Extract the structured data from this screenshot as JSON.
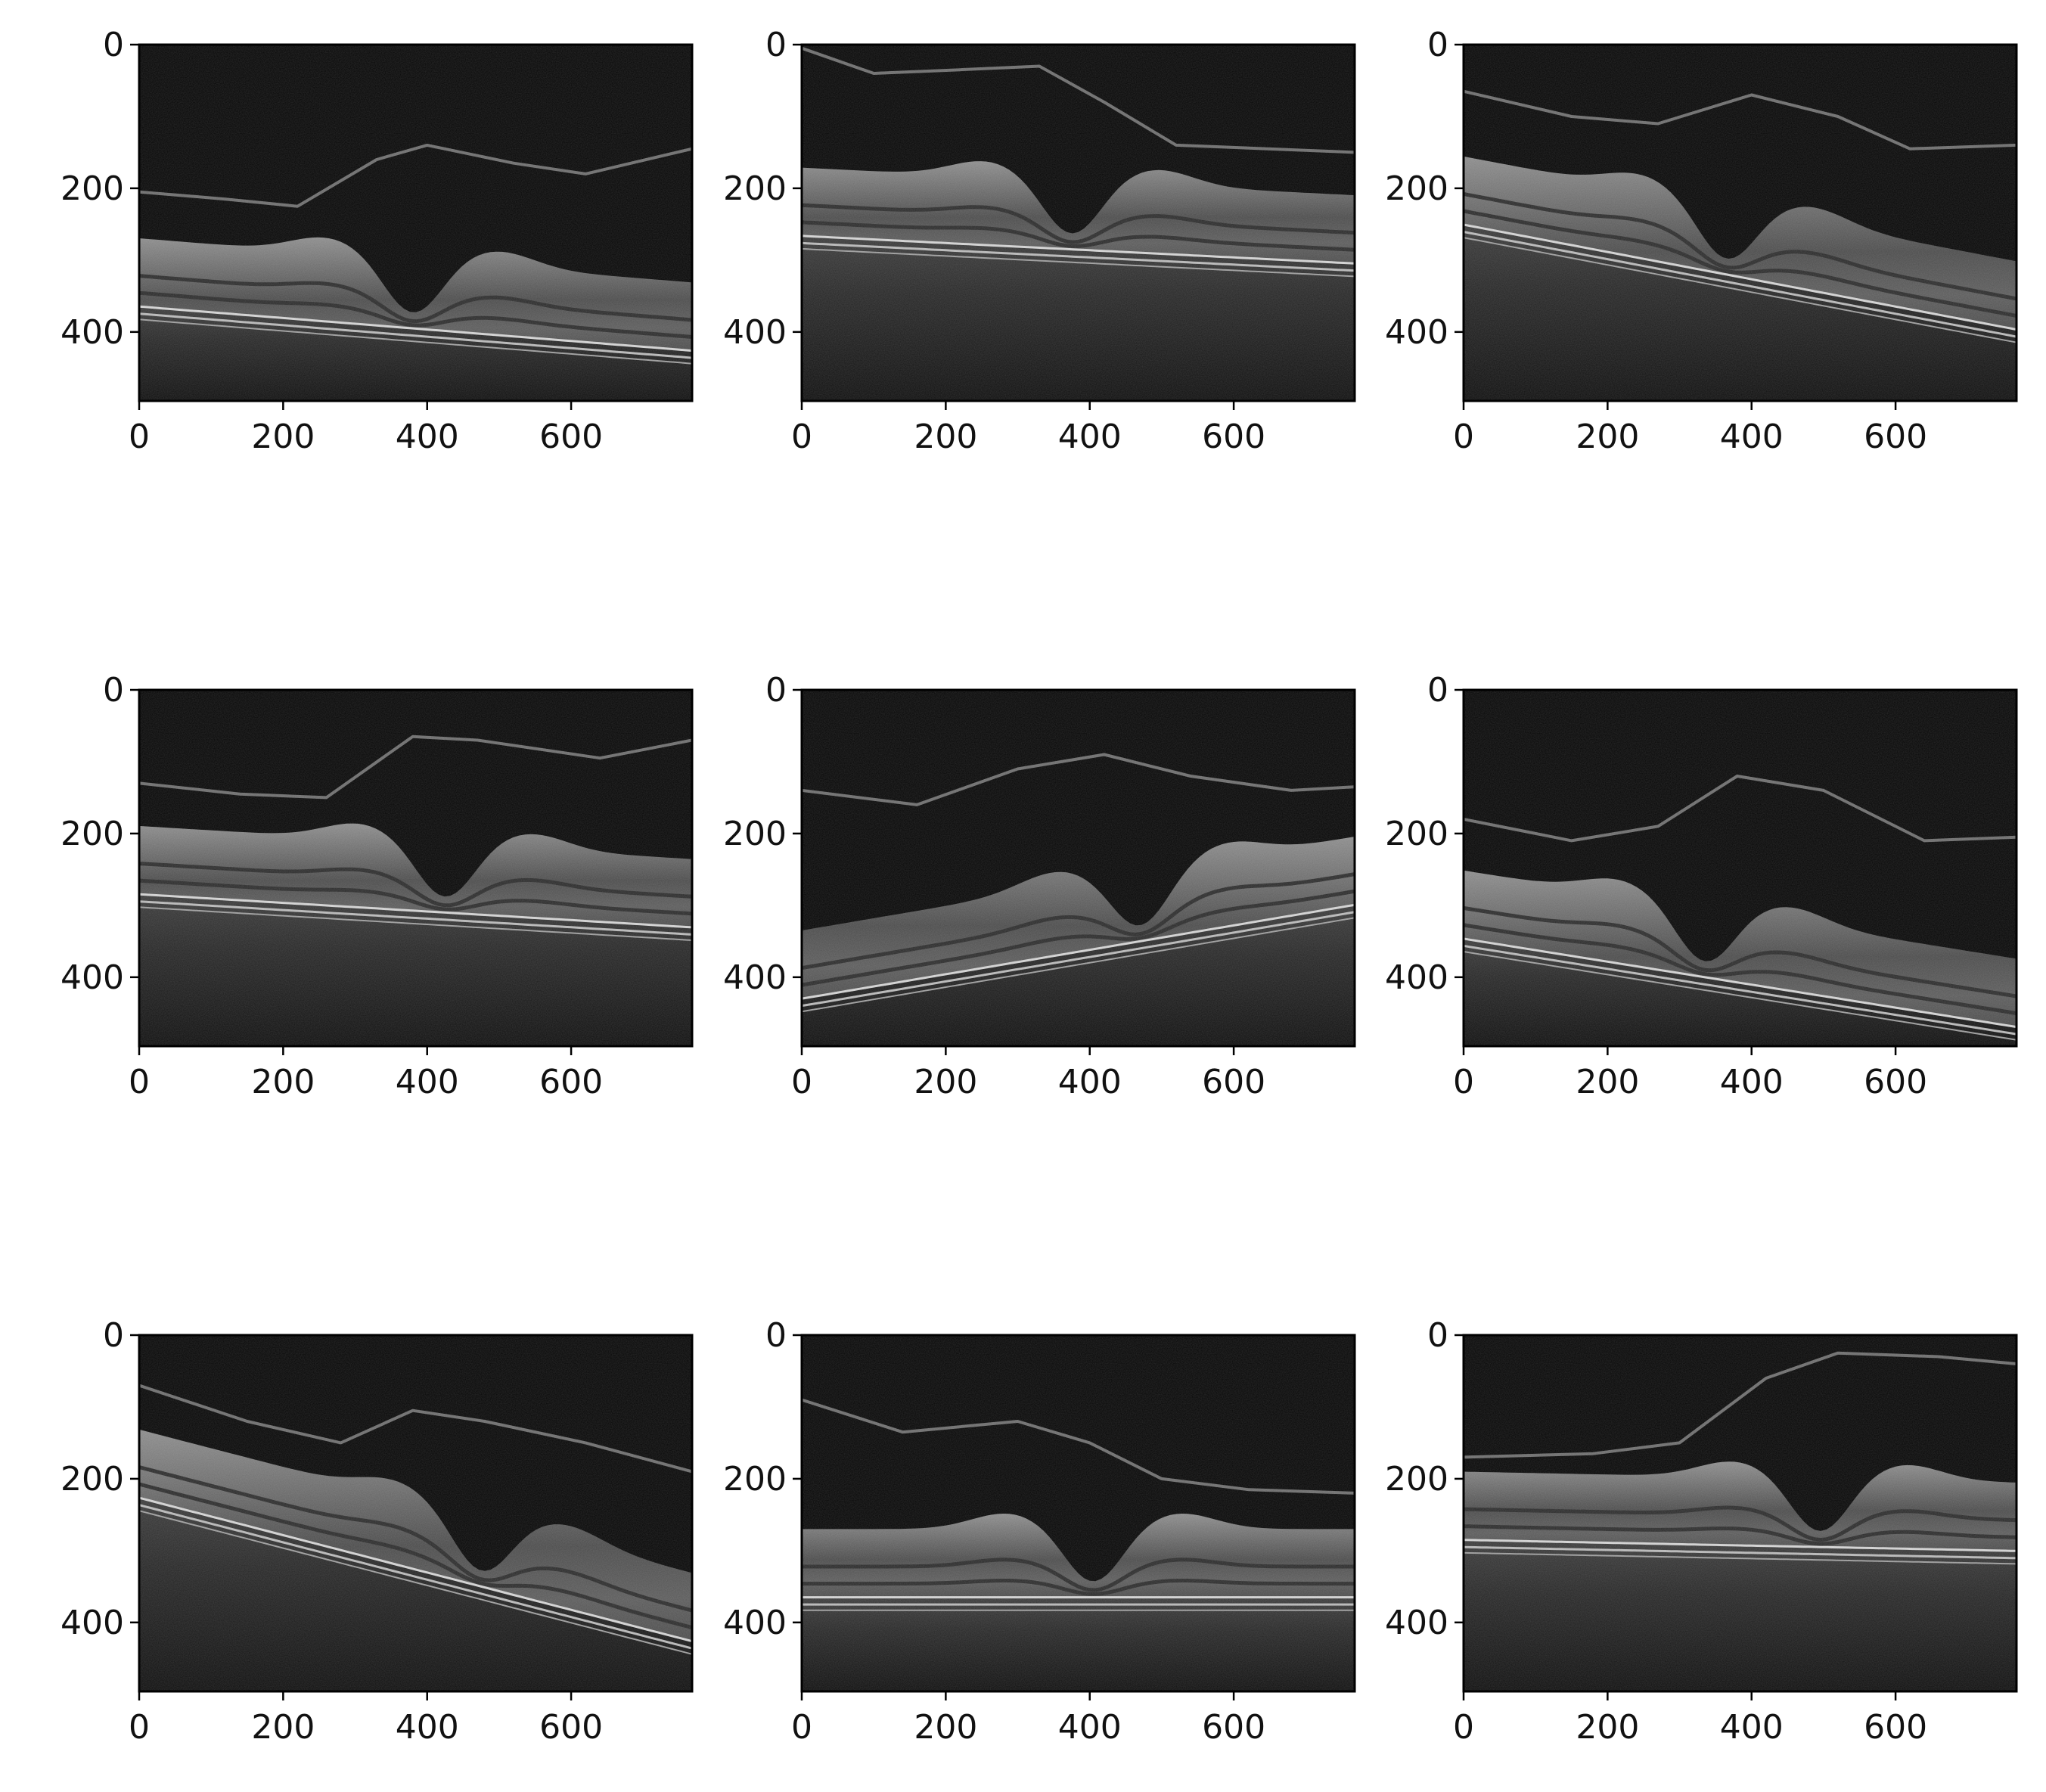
{
  "figure": {
    "layout": "3x3 grid of OCT retinal B-scan images",
    "background": "#ffffff",
    "axis_color": "#000000",
    "image_tone": "grayscale"
  },
  "panels": [
    {
      "name": "panel-1",
      "xticks": [
        "0",
        "200",
        "400",
        "600"
      ],
      "yticks": [
        "0",
        "200",
        "400"
      ],
      "x_range": [
        0,
        768
      ],
      "y_range": [
        0,
        496
      ],
      "fovea_x": 380,
      "fovea_depth": 330,
      "tilt": 0.08,
      "vitreous_edge": [
        [
          0,
          205
        ],
        [
          120,
          215
        ],
        [
          220,
          225
        ],
        [
          330,
          160
        ],
        [
          400,
          140
        ],
        [
          520,
          165
        ],
        [
          620,
          180
        ],
        [
          768,
          145
        ]
      ]
    },
    {
      "name": "panel-2",
      "xticks": [
        "0",
        "200",
        "400",
        "600"
      ],
      "yticks": [
        "0",
        "200",
        "400"
      ],
      "x_range": [
        0,
        768
      ],
      "y_range": [
        0,
        496
      ],
      "fovea_x": 375,
      "fovea_depth": 220,
      "tilt": 0.05,
      "vitreous_edge": [
        [
          0,
          5
        ],
        [
          100,
          40
        ],
        [
          220,
          35
        ],
        [
          330,
          30
        ],
        [
          420,
          80
        ],
        [
          520,
          140
        ],
        [
          768,
          150
        ]
      ]
    },
    {
      "name": "panel-3",
      "xticks": [
        "0",
        "200",
        "400",
        "600"
      ],
      "yticks": [
        "0",
        "200",
        "400"
      ],
      "x_range": [
        0,
        768
      ],
      "y_range": [
        0,
        496
      ],
      "fovea_x": 365,
      "fovea_depth": 255,
      "tilt": 0.19,
      "vitreous_edge": [
        [
          0,
          65
        ],
        [
          150,
          100
        ],
        [
          270,
          110
        ],
        [
          400,
          70
        ],
        [
          520,
          100
        ],
        [
          620,
          145
        ],
        [
          768,
          140
        ]
      ]
    },
    {
      "name": "panel-4",
      "xticks": [
        "0",
        "200",
        "400",
        "600"
      ],
      "yticks": [
        "0",
        "200",
        "400"
      ],
      "x_range": [
        0,
        768
      ],
      "y_range": [
        0,
        496
      ],
      "fovea_x": 425,
      "fovea_depth": 245,
      "tilt": 0.06,
      "vitreous_edge": [
        [
          0,
          130
        ],
        [
          140,
          145
        ],
        [
          260,
          150
        ],
        [
          380,
          65
        ],
        [
          470,
          70
        ],
        [
          640,
          95
        ],
        [
          768,
          70
        ]
      ]
    },
    {
      "name": "panel-5",
      "xticks": [
        "0",
        "200",
        "400",
        "600"
      ],
      "yticks": [
        "0",
        "200",
        "400"
      ],
      "x_range": [
        0,
        768
      ],
      "y_range": [
        0,
        496
      ],
      "fovea_x": 470,
      "fovea_depth": 285,
      "tilt": -0.17,
      "vitreous_edge": [
        [
          0,
          140
        ],
        [
          160,
          160
        ],
        [
          300,
          110
        ],
        [
          420,
          90
        ],
        [
          540,
          120
        ],
        [
          680,
          140
        ],
        [
          768,
          135
        ]
      ]
    },
    {
      "name": "panel-6",
      "xticks": [
        "0",
        "200",
        "400",
        "600"
      ],
      "yticks": [
        "0",
        "200",
        "400"
      ],
      "x_range": [
        0,
        768
      ],
      "y_range": [
        0,
        496
      ],
      "fovea_x": 335,
      "fovea_depth": 335,
      "tilt": 0.16,
      "vitreous_edge": [
        [
          0,
          180
        ],
        [
          150,
          210
        ],
        [
          270,
          190
        ],
        [
          380,
          120
        ],
        [
          500,
          140
        ],
        [
          640,
          210
        ],
        [
          768,
          205
        ]
      ]
    },
    {
      "name": "panel-7",
      "xticks": [
        "0",
        "200",
        "400",
        "600"
      ],
      "yticks": [
        "0",
        "200",
        "400"
      ],
      "x_range": [
        0,
        768
      ],
      "y_range": [
        0,
        496
      ],
      "fovea_x": 475,
      "fovea_depth": 285,
      "tilt": 0.26,
      "vitreous_edge": [
        [
          0,
          70
        ],
        [
          150,
          120
        ],
        [
          280,
          150
        ],
        [
          380,
          105
        ],
        [
          480,
          120
        ],
        [
          620,
          150
        ],
        [
          768,
          190
        ]
      ]
    },
    {
      "name": "panel-8",
      "xticks": [
        "0",
        "200",
        "400",
        "600"
      ],
      "yticks": [
        "0",
        "200",
        "400"
      ],
      "x_range": [
        0,
        768
      ],
      "y_range": [
        0,
        496
      ],
      "fovea_x": 405,
      "fovea_depth": 300,
      "tilt": 0.0,
      "vitreous_edge": [
        [
          0,
          90
        ],
        [
          140,
          135
        ],
        [
          300,
          120
        ],
        [
          400,
          150
        ],
        [
          500,
          200
        ],
        [
          620,
          215
        ],
        [
          768,
          220
        ]
      ]
    },
    {
      "name": "panel-9",
      "xticks": [
        "0",
        "200",
        "400",
        "600"
      ],
      "yticks": [
        "0",
        "200",
        "400"
      ],
      "x_range": [
        0,
        768
      ],
      "y_range": [
        0,
        496
      ],
      "fovea_x": 495,
      "fovea_depth": 230,
      "tilt": 0.02,
      "vitreous_edge": [
        [
          0,
          170
        ],
        [
          180,
          165
        ],
        [
          300,
          150
        ],
        [
          420,
          60
        ],
        [
          520,
          25
        ],
        [
          660,
          30
        ],
        [
          768,
          40
        ]
      ]
    }
  ]
}
